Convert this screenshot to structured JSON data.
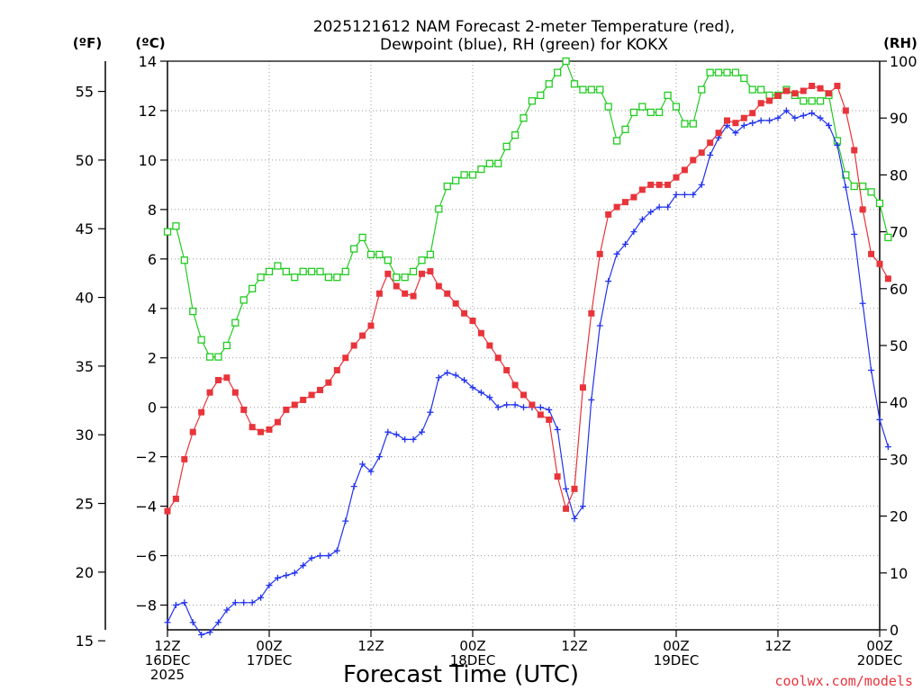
{
  "colors": {
    "temperature": "#e8343a",
    "dewpoint": "#2233ee",
    "rh": "#22cc22",
    "grid": "#9a9a9a",
    "credit": "#e8343a"
  },
  "chart_data": {
    "type": "line",
    "title_lines": [
      "2025121612 NAM Forecast 2-meter Temperature (red),",
      "Dewpoint (blue), RH (green) for KOKX"
    ],
    "xlabel": "Forecast Time (UTC)",
    "unit_f": "(ºF)",
    "unit_c": "(ºC)",
    "unit_rh": "(RH)",
    "credit": "coolwx.com/models",
    "x_range": [
      0,
      84
    ],
    "x_step_hours": 1,
    "x_ticks": [
      {
        "hour": 0,
        "lines": [
          "12Z",
          "16DEC",
          "2025"
        ]
      },
      {
        "hour": 12,
        "lines": [
          "00Z",
          "17DEC"
        ]
      },
      {
        "hour": 24,
        "lines": [
          "12Z"
        ]
      },
      {
        "hour": 36,
        "lines": [
          "00Z",
          "18DEC"
        ]
      },
      {
        "hour": 48,
        "lines": [
          "12Z"
        ]
      },
      {
        "hour": 60,
        "lines": [
          "00Z",
          "19DEC"
        ]
      },
      {
        "hour": 72,
        "lines": [
          "12Z"
        ]
      },
      {
        "hour": 84,
        "lines": [
          "00Z",
          "20DEC"
        ]
      }
    ],
    "celsius_axis": {
      "range": [
        -9.0,
        14.0
      ],
      "ticks": [
        -8,
        -6,
        -4,
        -2,
        0,
        2,
        4,
        6,
        8,
        10,
        12,
        14
      ]
    },
    "fahrenheit_axis": {
      "ticks": [
        15,
        20,
        25,
        30,
        35,
        40,
        45,
        50,
        55
      ]
    },
    "rh_axis": {
      "range": [
        0,
        100
      ],
      "ticks": [
        0,
        10,
        20,
        30,
        40,
        50,
        60,
        70,
        80,
        90,
        100
      ]
    },
    "series": [
      {
        "name": "2-meter Temperature",
        "axis": "celsius",
        "marker": "filled-square",
        "values": [
          -4.2,
          -3.7,
          -2.1,
          -1.0,
          -0.2,
          0.6,
          1.1,
          1.2,
          0.6,
          -0.1,
          -0.8,
          -1.0,
          -0.9,
          -0.6,
          -0.1,
          0.1,
          0.3,
          0.5,
          0.7,
          1.0,
          1.5,
          2.0,
          2.5,
          2.9,
          3.3,
          4.6,
          5.4,
          4.9,
          4.6,
          4.5,
          5.4,
          5.5,
          4.9,
          4.6,
          4.2,
          3.8,
          3.5,
          3.0,
          2.5,
          2.0,
          1.5,
          0.9,
          0.5,
          0.1,
          -0.3,
          -0.5,
          -2.8,
          -4.1,
          -3.3,
          0.8,
          3.8,
          6.2,
          7.8,
          8.1,
          8.3,
          8.5,
          8.8,
          9.0,
          9.0,
          9.0,
          9.3,
          9.6,
          10.0,
          10.3,
          10.7,
          11.1,
          11.6,
          11.5,
          11.7,
          11.9,
          12.3,
          12.4,
          12.6,
          12.8,
          12.7,
          12.8,
          13.0,
          12.9,
          12.7,
          13.0,
          12.0,
          10.4,
          8.0,
          6.2,
          5.8,
          5.2
        ]
      },
      {
        "name": "Dewpoint",
        "axis": "celsius",
        "marker": "plus",
        "values": [
          -8.7,
          -8.0,
          -7.9,
          -8.7,
          -9.2,
          -9.1,
          -8.7,
          -8.2,
          -7.9,
          -7.9,
          -7.9,
          -7.7,
          -7.2,
          -6.9,
          -6.8,
          -6.7,
          -6.4,
          -6.1,
          -6.0,
          -6.0,
          -5.8,
          -4.6,
          -3.2,
          -2.3,
          -2.6,
          -2.0,
          -1.0,
          -1.1,
          -1.3,
          -1.3,
          -1.0,
          -0.2,
          1.2,
          1.4,
          1.3,
          1.1,
          0.8,
          0.6,
          0.4,
          0.0,
          0.1,
          0.1,
          0.0,
          0.0,
          0.0,
          -0.1,
          -0.9,
          -3.3,
          -4.5,
          -4.0,
          0.3,
          3.3,
          5.1,
          6.2,
          6.6,
          7.1,
          7.6,
          7.9,
          8.1,
          8.1,
          8.6,
          8.6,
          8.6,
          9.0,
          10.2,
          10.9,
          11.4,
          11.1,
          11.4,
          11.5,
          11.6,
          11.6,
          11.7,
          12.0,
          11.7,
          11.8,
          11.9,
          11.7,
          11.4,
          10.6,
          8.9,
          7.0,
          4.2,
          1.5,
          -0.5,
          -1.6
        ]
      },
      {
        "name": "RH",
        "axis": "rh",
        "marker": "open-square",
        "values": [
          70,
          71,
          65,
          56,
          51,
          48,
          48,
          50,
          54,
          58,
          60,
          62,
          63,
          64,
          63,
          62,
          63,
          63,
          63,
          62,
          62,
          63,
          67,
          69,
          66,
          66,
          65,
          62,
          62,
          63,
          65,
          66,
          74,
          78,
          79,
          80,
          80,
          81,
          82,
          82,
          85,
          87,
          90,
          93,
          94,
          96,
          98,
          100,
          96,
          95,
          95,
          95,
          92,
          86,
          88,
          91,
          92,
          91,
          91,
          94,
          92,
          89,
          89,
          95,
          98,
          98,
          98,
          98,
          97,
          95,
          95,
          94,
          94,
          95,
          94,
          93,
          93,
          93,
          94,
          86,
          80,
          78,
          78,
          77,
          75,
          69
        ]
      }
    ]
  }
}
